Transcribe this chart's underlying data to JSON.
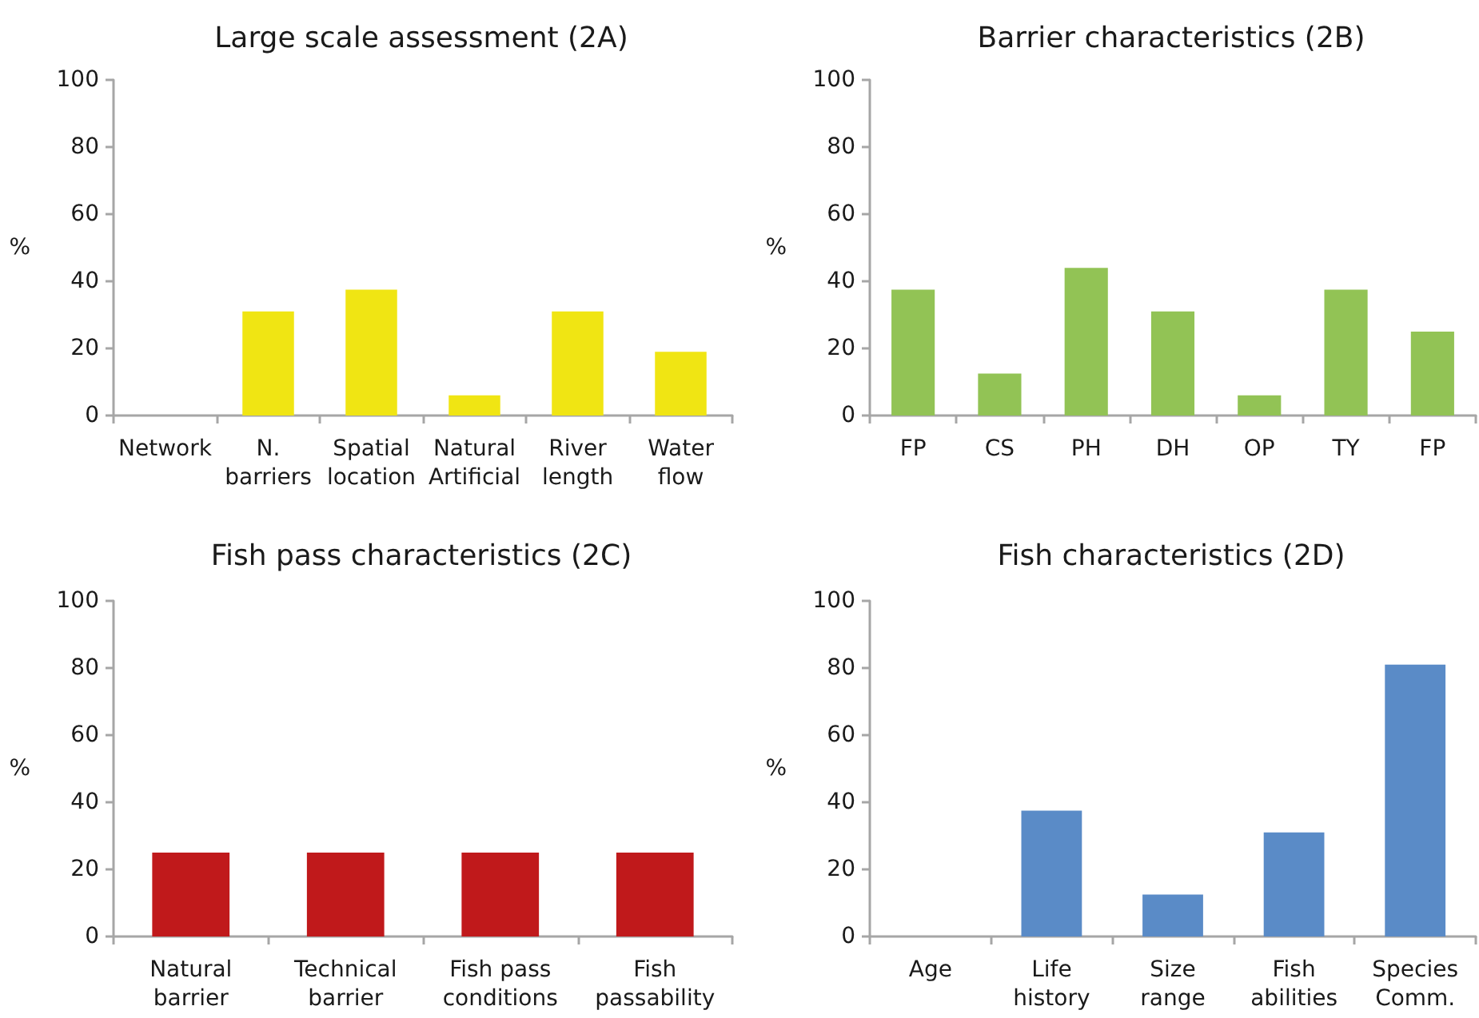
{
  "chart_data": [
    {
      "type": "bar",
      "title": "Large scale assessment (2A)",
      "ylabel": "%",
      "categories": [
        "Network",
        "N. barriers",
        "Spatial location",
        "Natural Artificial",
        "River length",
        "Water flow"
      ],
      "values": [
        0,
        31,
        37.5,
        6,
        31,
        19
      ],
      "color": "#f0e513",
      "ylim": [
        0,
        100
      ],
      "yticks": [
        0,
        20,
        40,
        60,
        80,
        100
      ]
    },
    {
      "type": "bar",
      "title": "Barrier characteristics (2B)",
      "ylabel": "%",
      "categories": [
        "FP",
        "CS",
        "PH",
        "DH",
        "OP",
        "TY",
        "FP"
      ],
      "values": [
        37.5,
        12.5,
        44,
        31,
        6,
        37.5,
        25
      ],
      "color": "#92c355",
      "ylim": [
        0,
        100
      ],
      "yticks": [
        0,
        20,
        40,
        60,
        80,
        100
      ]
    },
    {
      "type": "bar",
      "title": "Fish pass characteristics (2C)",
      "ylabel": "%",
      "categories": [
        "Natural barrier",
        "Technical barrier",
        "Fish pass conditions",
        "Fish passability"
      ],
      "values": [
        25,
        25,
        25,
        25
      ],
      "color": "#c0191b",
      "ylim": [
        0,
        100
      ],
      "yticks": [
        0,
        20,
        40,
        60,
        80,
        100
      ]
    },
    {
      "type": "bar",
      "title": "Fish characteristics (2D)",
      "ylabel": "%",
      "categories": [
        "Age",
        "Life history",
        "Size range",
        "Fish abilities",
        "Species Comm."
      ],
      "values": [
        0,
        37.5,
        12.5,
        31,
        81
      ],
      "color": "#5a8bc7",
      "ylim": [
        0,
        100
      ],
      "yticks": [
        0,
        20,
        40,
        60,
        80,
        100
      ]
    }
  ]
}
